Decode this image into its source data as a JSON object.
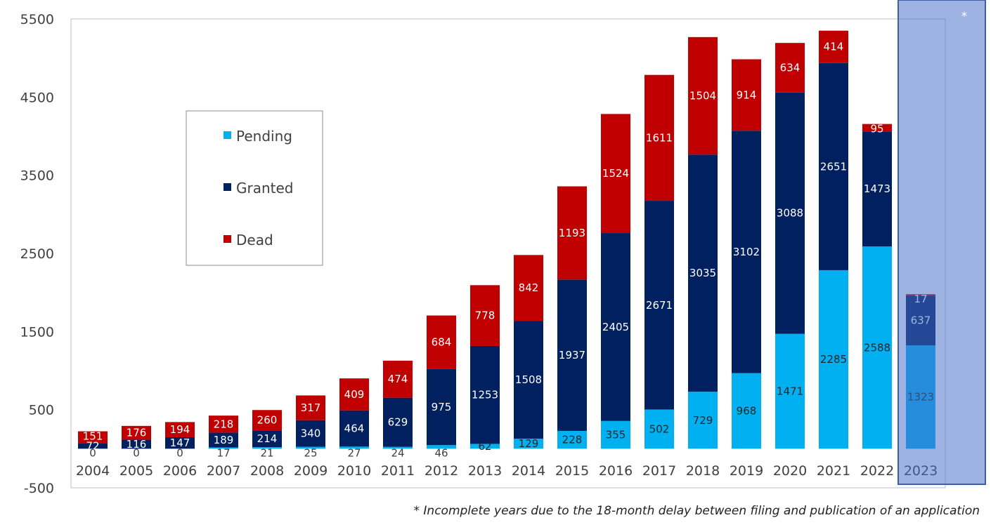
{
  "chart_data": {
    "type": "bar",
    "stacked": true,
    "categories": [
      "2004",
      "2005",
      "2006",
      "2007",
      "2008",
      "2009",
      "2010",
      "2011",
      "2012",
      "2013",
      "2014",
      "2015",
      "2016",
      "2017",
      "2018",
      "2019",
      "2020",
      "2021",
      "2022",
      "2023"
    ],
    "series": [
      {
        "name": "Pending",
        "color": "#00b0f0",
        "values": [
          0,
          0,
          0,
          17,
          21,
          25,
          27,
          24,
          46,
          62,
          129,
          228,
          355,
          502,
          729,
          968,
          1471,
          2285,
          2588,
          1323
        ]
      },
      {
        "name": "Granted",
        "color": "#002060",
        "values": [
          72,
          116,
          147,
          189,
          214,
          340,
          464,
          629,
          975,
          1253,
          1508,
          1937,
          2405,
          2671,
          3035,
          3102,
          3088,
          2651,
          1473,
          637
        ]
      },
      {
        "name": "Dead",
        "color": "#c00000",
        "values": [
          151,
          176,
          194,
          218,
          260,
          317,
          409,
          474,
          684,
          778,
          842,
          1193,
          1524,
          1611,
          1504,
          914,
          634,
          414,
          95,
          17
        ]
      }
    ],
    "ylim": [
      -500,
      5500
    ],
    "yticks": [
      -500,
      500,
      1500,
      2500,
      3500,
      4500,
      5500
    ],
    "xlabel": "",
    "ylabel": "",
    "grid": false,
    "legend_position": "top-left",
    "legend": [
      "Pending",
      "Granted",
      "Dead"
    ],
    "highlighted_categories": [
      "2023"
    ],
    "highlight_marker": "*",
    "footnote": "* Incomplete years due to the 18-month delay between filing and publication of an application"
  }
}
